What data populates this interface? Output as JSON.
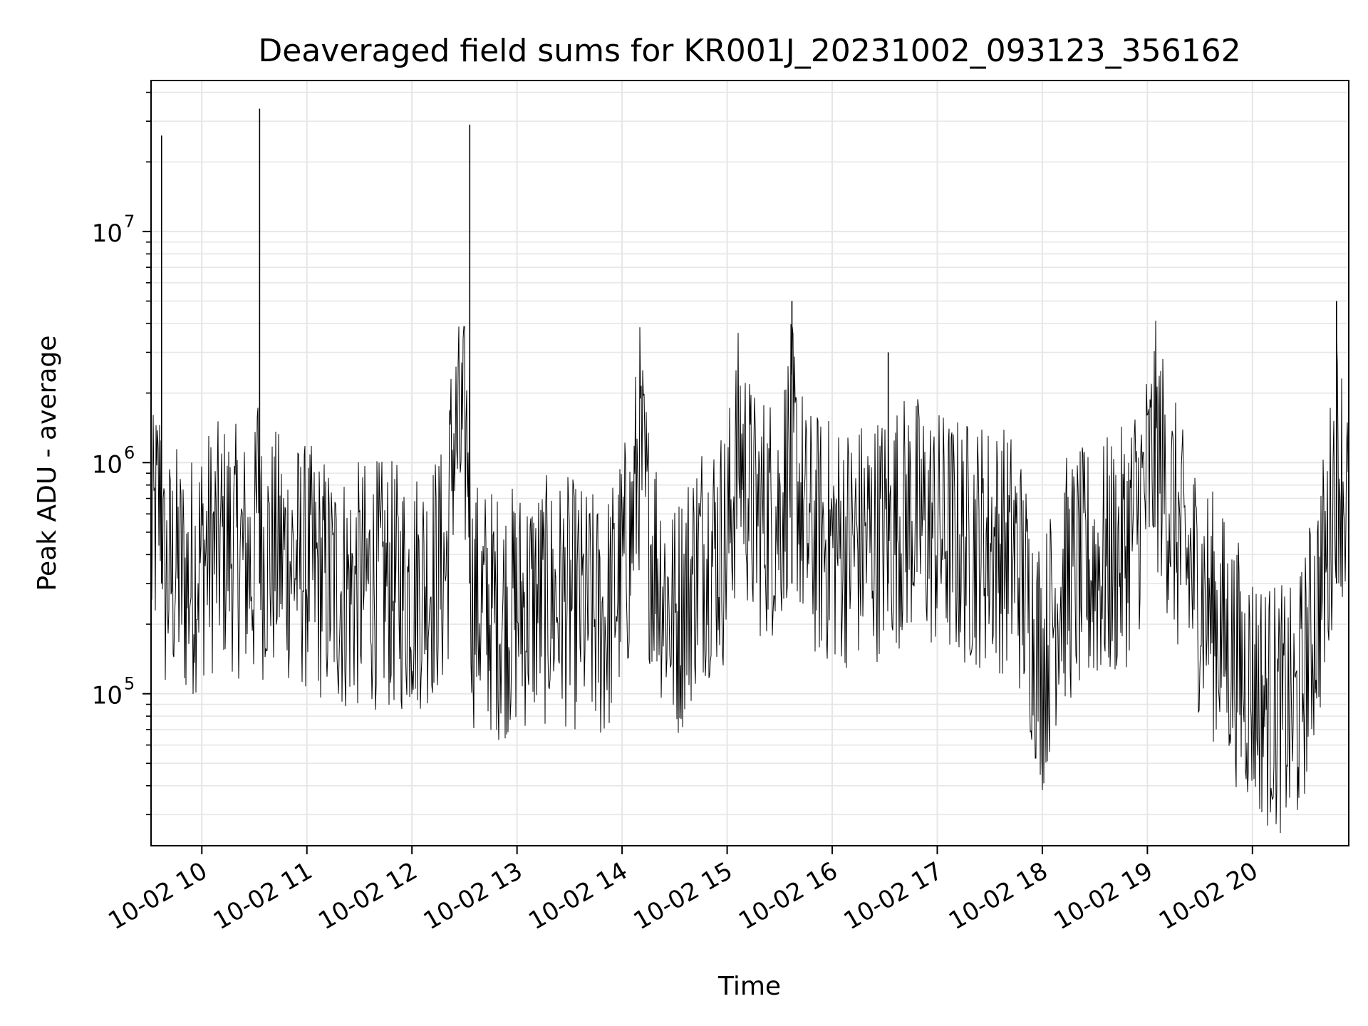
{
  "chart_data": {
    "type": "line",
    "title": "Deaveraged field sums for KR001J_20231002_093123_356162",
    "xlabel": "Time",
    "ylabel": "Peak ADU - average",
    "yscale": "log",
    "xlim": [
      "2023-10-02 09:31",
      "2023-10-02 20:55"
    ],
    "ylim": [
      22000,
      45000000
    ],
    "grid": true,
    "line_color": "#000000",
    "grid_color": "#e6e6e6",
    "x_tick_labels": [
      "10-02 10",
      "10-02 11",
      "10-02 12",
      "10-02 13",
      "10-02 14",
      "10-02 15",
      "10-02 16",
      "10-02 17",
      "10-02 18",
      "10-02 19",
      "10-02 20"
    ],
    "x_ticks": [
      "2023-10-02 10:00",
      "2023-10-02 11:00",
      "2023-10-02 12:00",
      "2023-10-02 13:00",
      "2023-10-02 14:00",
      "2023-10-02 15:00",
      "2023-10-02 16:00",
      "2023-10-02 17:00",
      "2023-10-02 18:00",
      "2023-10-02 19:00",
      "2023-10-02 20:00"
    ],
    "y_tick_labels": [
      {
        "base": "10",
        "exp": "5",
        "value": 100000
      },
      {
        "base": "10",
        "exp": "6",
        "value": 1000000
      },
      {
        "base": "10",
        "exp": "7",
        "value": 10000000
      }
    ],
    "series": [
      {
        "x": [
          "2023-10-02 09:31",
          "2023-10-02 09:36",
          "2023-10-02 09:37",
          "2023-10-02 09:38",
          "2023-10-02 09:45",
          "2023-10-02 09:52",
          "2023-10-02 10:00",
          "2023-10-02 10:15",
          "2023-10-02 10:30",
          "2023-10-02 10:33",
          "2023-10-02 10:34",
          "2023-10-02 10:45",
          "2023-10-02 11:00",
          "2023-10-02 11:20",
          "2023-10-02 11:40",
          "2023-10-02 12:00",
          "2023-10-02 12:20",
          "2023-10-02 12:23",
          "2023-10-02 12:33",
          "2023-10-02 12:34",
          "2023-10-02 12:50",
          "2023-10-02 13:10",
          "2023-10-02 13:30",
          "2023-10-02 13:50",
          "2023-10-02 14:05",
          "2023-10-02 14:10",
          "2023-10-02 14:15",
          "2023-10-02 14:30",
          "2023-10-02 14:45",
          "2023-10-02 15:00",
          "2023-10-02 15:07",
          "2023-10-02 15:15",
          "2023-10-02 15:30",
          "2023-10-02 15:37",
          "2023-10-02 15:45",
          "2023-10-02 16:00",
          "2023-10-02 16:15",
          "2023-10-02 16:30",
          "2023-10-02 16:45",
          "2023-10-02 17:00",
          "2023-10-02 17:15",
          "2023-10-02 17:30",
          "2023-10-02 17:45",
          "2023-10-02 18:00",
          "2023-10-02 18:10",
          "2023-10-02 18:30",
          "2023-10-02 18:45",
          "2023-10-02 19:00",
          "2023-10-02 19:05",
          "2023-10-02 19:20",
          "2023-10-02 19:40",
          "2023-10-02 19:55",
          "2023-10-02 20:10",
          "2023-10-02 20:25",
          "2023-10-02 20:35",
          "2023-10-02 20:43",
          "2023-10-02 20:48",
          "2023-10-02 20:55"
        ],
        "y": [
          400000,
          700000,
          26000000,
          300000,
          350000,
          300000,
          400000,
          450000,
          350000,
          34000000,
          400000,
          400000,
          350000,
          280000,
          300000,
          280000,
          350000,
          2500000,
          29000000,
          250000,
          220000,
          250000,
          250000,
          200000,
          450000,
          2300000,
          500000,
          200000,
          400000,
          450000,
          1800000,
          600000,
          600000,
          5000000,
          500000,
          450000,
          450000,
          500000,
          600000,
          500000,
          450000,
          450000,
          400000,
          130000,
          300000,
          350000,
          400000,
          800000,
          1500000,
          400000,
          200000,
          120000,
          90000,
          80000,
          200000,
          400000,
          5000000,
          600000
        ]
      }
    ],
    "peaks": [
      {
        "x": "2023-10-02 09:37",
        "y": 26000000
      },
      {
        "x": "2023-10-02 10:33",
        "y": 34000000
      },
      {
        "x": "2023-10-02 12:33",
        "y": 29000000
      },
      {
        "x": "2023-10-02 15:37",
        "y": 5000000
      },
      {
        "x": "2023-10-02 16:32",
        "y": 3000000
      },
      {
        "x": "2023-10-02 20:48",
        "y": 5000000
      }
    ]
  }
}
